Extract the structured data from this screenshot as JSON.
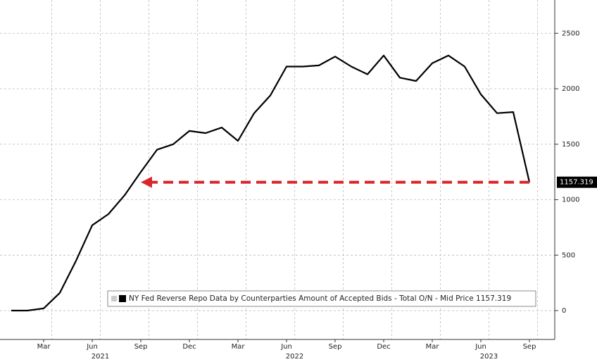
{
  "chart_data": {
    "type": "line",
    "x": [
      "2021-01",
      "2021-02",
      "2021-03",
      "2021-04",
      "2021-05",
      "2021-06",
      "2021-07",
      "2021-08",
      "2021-09",
      "2021-10",
      "2021-11",
      "2021-12",
      "2022-01",
      "2022-02",
      "2022-03",
      "2022-04",
      "2022-05",
      "2022-06",
      "2022-07",
      "2022-08",
      "2022-09",
      "2022-10",
      "2022-11",
      "2022-12",
      "2023-01",
      "2023-02",
      "2023-03",
      "2023-04",
      "2023-05",
      "2023-06",
      "2023-07",
      "2023-08",
      "2023-09"
    ],
    "series": [
      {
        "name": "NY Fed Reverse Repo Data by Counterparties Amount of Accepted Bids - Total O/N - Mid Price 1157.319",
        "color": "#000000",
        "values": [
          0,
          0,
          20,
          160,
          450,
          770,
          870,
          1040,
          1250,
          1450,
          1500,
          1620,
          1600,
          1650,
          1530,
          1780,
          1940,
          2200,
          2200,
          2210,
          2290,
          2200,
          2130,
          2300,
          2100,
          2070,
          2230,
          2300,
          2200,
          1950,
          1780,
          1790,
          1157.319
        ]
      }
    ],
    "last_value": 1157.319,
    "arrow": {
      "from": "2023-09",
      "to": "2021-09",
      "color": "#d9262b"
    },
    "xticks": [
      {
        "value": "2021-03",
        "label": "Mar"
      },
      {
        "value": "2021-06",
        "label": "Jun"
      },
      {
        "value": "2021-09",
        "label": "Sep"
      },
      {
        "value": "2021-12",
        "label": "Dec"
      },
      {
        "value": "2022-03",
        "label": "Mar"
      },
      {
        "value": "2022-06",
        "label": "Jun"
      },
      {
        "value": "2022-09",
        "label": "Sep"
      },
      {
        "value": "2022-12",
        "label": "Dec"
      },
      {
        "value": "2023-03",
        "label": "Mar"
      },
      {
        "value": "2023-06",
        "label": "Jun"
      },
      {
        "value": "2023-09",
        "label": "Sep"
      }
    ],
    "years": [
      "2021",
      "2022",
      "2023"
    ],
    "ylim": [
      -260,
      2800
    ],
    "yticks": [
      0,
      500,
      1000,
      1500,
      2000,
      2500
    ],
    "grid": true
  }
}
